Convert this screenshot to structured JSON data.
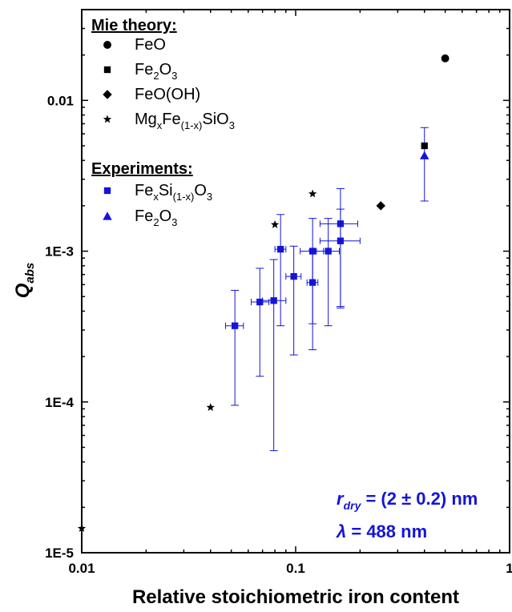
{
  "chart_data": {
    "type": "scatter",
    "xlabel": "Relative stoichiometric iron content",
    "ylabel": "Q",
    "ylabel_sub": "abs",
    "x_scale": "log",
    "y_scale": "log",
    "xlim": [
      0.01,
      1
    ],
    "ylim": [
      1e-05,
      0.04
    ],
    "x_ticks": [
      {
        "value": 0.01,
        "label": "0.01"
      },
      {
        "value": 0.1,
        "label": "0.1"
      },
      {
        "value": 1,
        "label": "1"
      }
    ],
    "y_ticks": [
      {
        "value": 1e-05,
        "label": "1E-5"
      },
      {
        "value": 0.0001,
        "label": "1E-4"
      },
      {
        "value": 0.001,
        "label": "1E-3"
      },
      {
        "value": 0.01,
        "label": "0.01"
      }
    ],
    "grid": false,
    "legend": {
      "placement": "top-left",
      "mie_heading": "Mie theory:",
      "exp_heading": "Experiments:",
      "entries": [
        {
          "marker": "circle",
          "color": "#000000",
          "text": [
            [
              "FeO",
              ""
            ]
          ]
        },
        {
          "marker": "square",
          "color": "#000000",
          "text": [
            [
              "Fe",
              ""
            ],
            [
              "2",
              "sub"
            ],
            [
              "O",
              ""
            ],
            [
              "3",
              "sub"
            ]
          ]
        },
        {
          "marker": "diamond",
          "color": "#000000",
          "text": [
            [
              "FeO(OH)",
              ""
            ]
          ]
        },
        {
          "marker": "star",
          "color": "#000000",
          "text": [
            [
              "Mg",
              ""
            ],
            [
              "x",
              "sub"
            ],
            [
              "Fe",
              ""
            ],
            [
              "(1-x)",
              "sub"
            ],
            [
              "SiO",
              ""
            ],
            [
              "3",
              "sub"
            ]
          ]
        },
        {
          "marker": "square",
          "color": "#1414d9",
          "text": [
            [
              "Fe",
              ""
            ],
            [
              "x",
              "sub"
            ],
            [
              "Si",
              ""
            ],
            [
              "(1-x)",
              "sub"
            ],
            [
              "O",
              ""
            ],
            [
              "3",
              "sub"
            ]
          ]
        },
        {
          "marker": "triangle",
          "color": "#1414d9",
          "text": [
            [
              "Fe",
              ""
            ],
            [
              "2",
              "sub"
            ],
            [
              "O",
              ""
            ],
            [
              "3",
              "sub"
            ]
          ]
        }
      ]
    },
    "annotations": {
      "r_symbol": "r",
      "r_sub": "dry",
      "r_value": " = (2 ± 0.2) nm",
      "lambda_symbol": "λ",
      "lambda_value": " = 488 nm"
    },
    "series": [
      {
        "name": "FeO",
        "group": "Mie theory",
        "marker": "circle",
        "color": "#000000",
        "points": [
          {
            "x": 0.5,
            "y": 0.019
          }
        ]
      },
      {
        "name": "Fe2O3",
        "group": "Mie theory",
        "marker": "square",
        "color": "#000000",
        "points": [
          {
            "x": 0.4,
            "y": 0.005
          }
        ]
      },
      {
        "name": "FeO(OH)",
        "group": "Mie theory",
        "marker": "diamond",
        "color": "#000000",
        "points": [
          {
            "x": 0.25,
            "y": 0.002
          }
        ]
      },
      {
        "name": "MgxFe(1-x)SiO3",
        "group": "Mie theory",
        "marker": "star",
        "color": "#000000",
        "points": [
          {
            "x": 0.01,
            "y": 1.45e-05
          },
          {
            "x": 0.04,
            "y": 9.2e-05
          },
          {
            "x": 0.08,
            "y": 0.0015
          },
          {
            "x": 0.12,
            "y": 0.0024
          }
        ]
      },
      {
        "name": "FexSi(1-x)O3",
        "group": "Experiments",
        "marker": "square",
        "color": "#1414d9",
        "points": [
          {
            "x": 0.052,
            "y": 0.00032,
            "xerr": [
              0.047,
              0.057
            ],
            "yerr": [
              9.5e-05,
              0.00055
            ]
          },
          {
            "x": 0.068,
            "y": 0.00046,
            "xerr": [
              0.062,
              0.075
            ],
            "yerr": [
              0.000148,
              0.00077
            ]
          },
          {
            "x": 0.079,
            "y": 0.00047,
            "xerr": [
              0.07,
              0.09
            ],
            "yerr": [
              4.75e-05,
              0.00088
            ]
          },
          {
            "x": 0.085,
            "y": 0.00103,
            "xerr": [
              0.08,
              0.09
            ],
            "yerr": [
              0.00032,
              0.00175
            ]
          },
          {
            "x": 0.098,
            "y": 0.00068,
            "xerr": [
              0.09,
              0.106
            ],
            "yerr": [
              0.000205,
              0.00108
            ]
          },
          {
            "x": 0.12,
            "y": 0.00062,
            "xerr": [
              0.113,
              0.127
            ],
            "yerr": [
              0.000222,
              0.00102
            ]
          },
          {
            "x": 0.12,
            "y": 0.001,
            "xerr": [
              0.105,
              0.135
            ],
            "yerr": [
              0.00033,
              0.00165
            ]
          },
          {
            "x": 0.142,
            "y": 0.001,
            "xerr": [
              0.125,
              0.16
            ],
            "yerr": [
              0.00032,
              0.00165
            ]
          },
          {
            "x": 0.162,
            "y": 0.00152,
            "xerr": [
              0.13,
              0.195
            ],
            "yerr": [
              0.00043,
              0.0026
            ]
          },
          {
            "x": 0.162,
            "y": 0.00117,
            "xerr": [
              0.13,
              0.2
            ],
            "yerr": [
              0.00042,
              0.0019
            ]
          }
        ]
      },
      {
        "name": "Fe2O3",
        "group": "Experiments",
        "marker": "triangle",
        "color": "#1414d9",
        "points": [
          {
            "x": 0.4,
            "y": 0.0043,
            "yerr": [
              0.00215,
              0.0066
            ]
          }
        ]
      }
    ]
  }
}
